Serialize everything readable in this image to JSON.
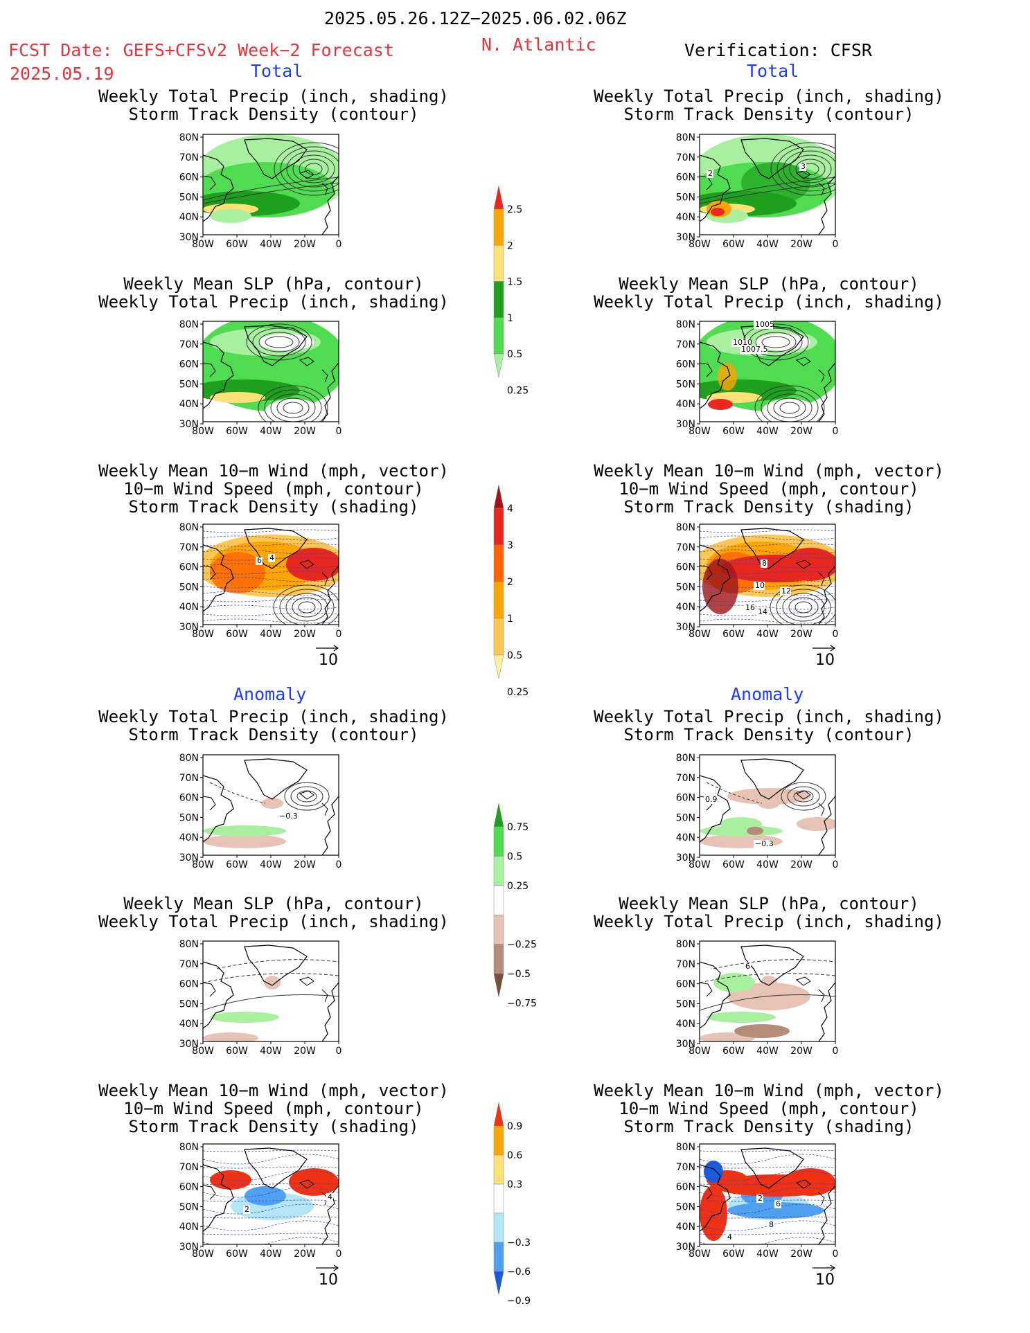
{
  "header": {
    "title": "2025.05.26.12Z−2025.06.02.06Z",
    "fcst_label": "FCST Date: GEFS+CFSv2 Week−2 Forecast",
    "fcst_date": "2025.05.19",
    "region": "N. Atlantic",
    "verification": "Verification: CFSR"
  },
  "sections": {
    "total_left": "Total",
    "total_right": "Total",
    "anomaly_left": "Anomaly",
    "anomaly_right": "Anomaly"
  },
  "titles": {
    "precip_track": [
      "Weekly Total Precip (inch, shading)",
      "Storm Track Density (contour)"
    ],
    "slp_precip": [
      "Weekly Mean SLP (hPa, contour)",
      "Weekly Total Precip (inch, shading)"
    ],
    "wind_track": [
      "Weekly Mean 10−m Wind (mph, vector)",
      "10−m Wind Speed (mph, contour)",
      "Storm Track Density (shading)"
    ]
  },
  "axes": {
    "lat_labels": [
      "80N",
      "70N",
      "60N",
      "50N",
      "40N",
      "30N"
    ],
    "lon_labels": [
      "80W",
      "60W",
      "40W",
      "20W",
      "0"
    ],
    "vector_ref": "10"
  },
  "colorbars": {
    "precip_total": {
      "labels": [
        "2.5",
        "2",
        "1.5",
        "1",
        "0.5",
        "0.25"
      ],
      "colors": [
        "#e8281e",
        "#ffa500",
        "#ffe178",
        "#1ea01e",
        "#50dc50",
        "#a8f0a0"
      ]
    },
    "track_total": {
      "labels": [
        "4",
        "3",
        "2",
        "1",
        "0.5",
        "0.25"
      ],
      "colors": [
        "#a01414",
        "#e8281e",
        "#ff6400",
        "#ffa500",
        "#ffc850",
        "#fff0a0"
      ]
    },
    "precip_anom": {
      "labels": [
        "0.75",
        "0.5",
        "0.25",
        "−0.25",
        "−0.5",
        "−0.75"
      ],
      "colors": [
        "#1ea01e",
        "#50dc50",
        "#a8f0a0",
        "#ffffff",
        "#e6c3b4",
        "#b48c78",
        "#785038"
      ]
    },
    "track_anom": {
      "labels": [
        "0.9",
        "0.6",
        "0.3",
        "−0.3",
        "−0.6",
        "−0.9"
      ],
      "colors": [
        "#f03214",
        "#ffa500",
        "#ffe178",
        "#ffffff",
        "#b4e6f5",
        "#50a0f0",
        "#1e5adc"
      ]
    }
  },
  "contour_labels": {
    "r_precip_track_total": [
      "2",
      "3"
    ],
    "r_slp_total": [
      "1005",
      "1010",
      "1007.5"
    ],
    "l_wind_total": [
      "6",
      "4"
    ],
    "r_wind_total": [
      "8",
      "10",
      "12",
      "16",
      "14"
    ],
    "l_precip_track_anom": [
      "−0.3"
    ],
    "r_precip_track_anom": [
      "0.9",
      "−0.3"
    ],
    "r_slp_anom": [
      "6"
    ],
    "l_wind_anom": [
      "2",
      "4"
    ],
    "r_wind_anom": [
      "2",
      "6",
      "8",
      "4"
    ]
  }
}
